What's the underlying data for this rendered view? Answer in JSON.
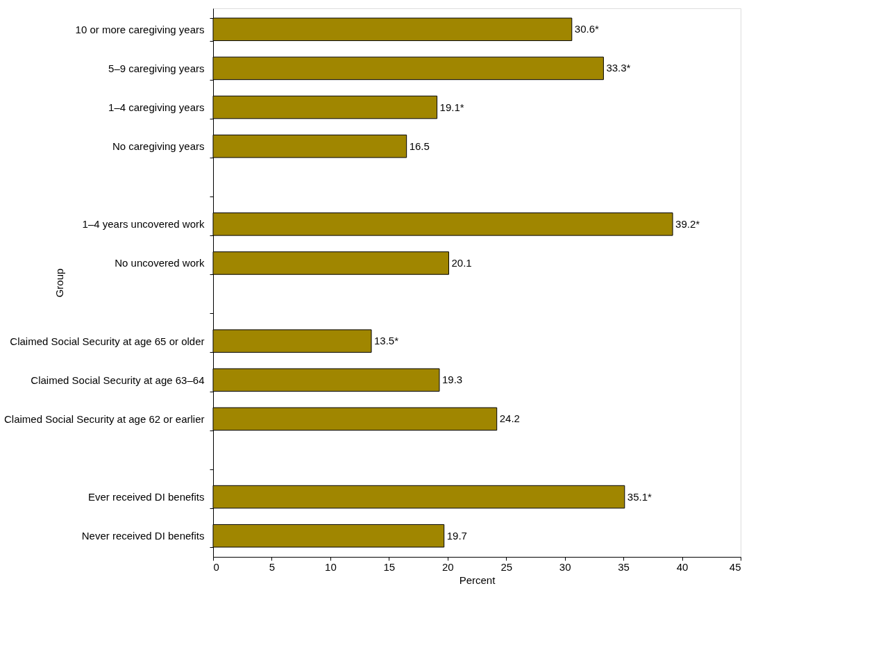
{
  "chart_data": {
    "type": "bar",
    "orientation": "horizontal",
    "xlabel": "Percent",
    "ylabel": "Group",
    "categories": [
      "10 or more caregiving years",
      "5–9 caregiving years",
      "1–4 caregiving years",
      "No caregiving years",
      null,
      "1–4 years uncovered work",
      "No uncovered work",
      null,
      "Claimed Social Security at age 65 or older",
      "Claimed Social Security at age 63–64",
      "Claimed Social Security at age 62 or earlier",
      null,
      "Ever received DI benefits",
      "Never received DI benefits"
    ],
    "values": [
      30.6,
      33.3,
      19.1,
      16.5,
      null,
      39.2,
      20.1,
      null,
      13.5,
      19.3,
      24.2,
      null,
      35.1,
      19.7
    ],
    "value_labels": [
      "30.6*",
      "33.3*",
      "19.1*",
      "16.5",
      null,
      "39.2*",
      "20.1",
      null,
      "13.5*",
      "19.3",
      "24.2",
      null,
      "35.1*",
      "19.7"
    ],
    "color": "#a08600",
    "xlim": [
      0,
      45
    ],
    "xticks": [
      0,
      5,
      10,
      15,
      20,
      25,
      30,
      35,
      40,
      45
    ],
    "grid": false
  }
}
